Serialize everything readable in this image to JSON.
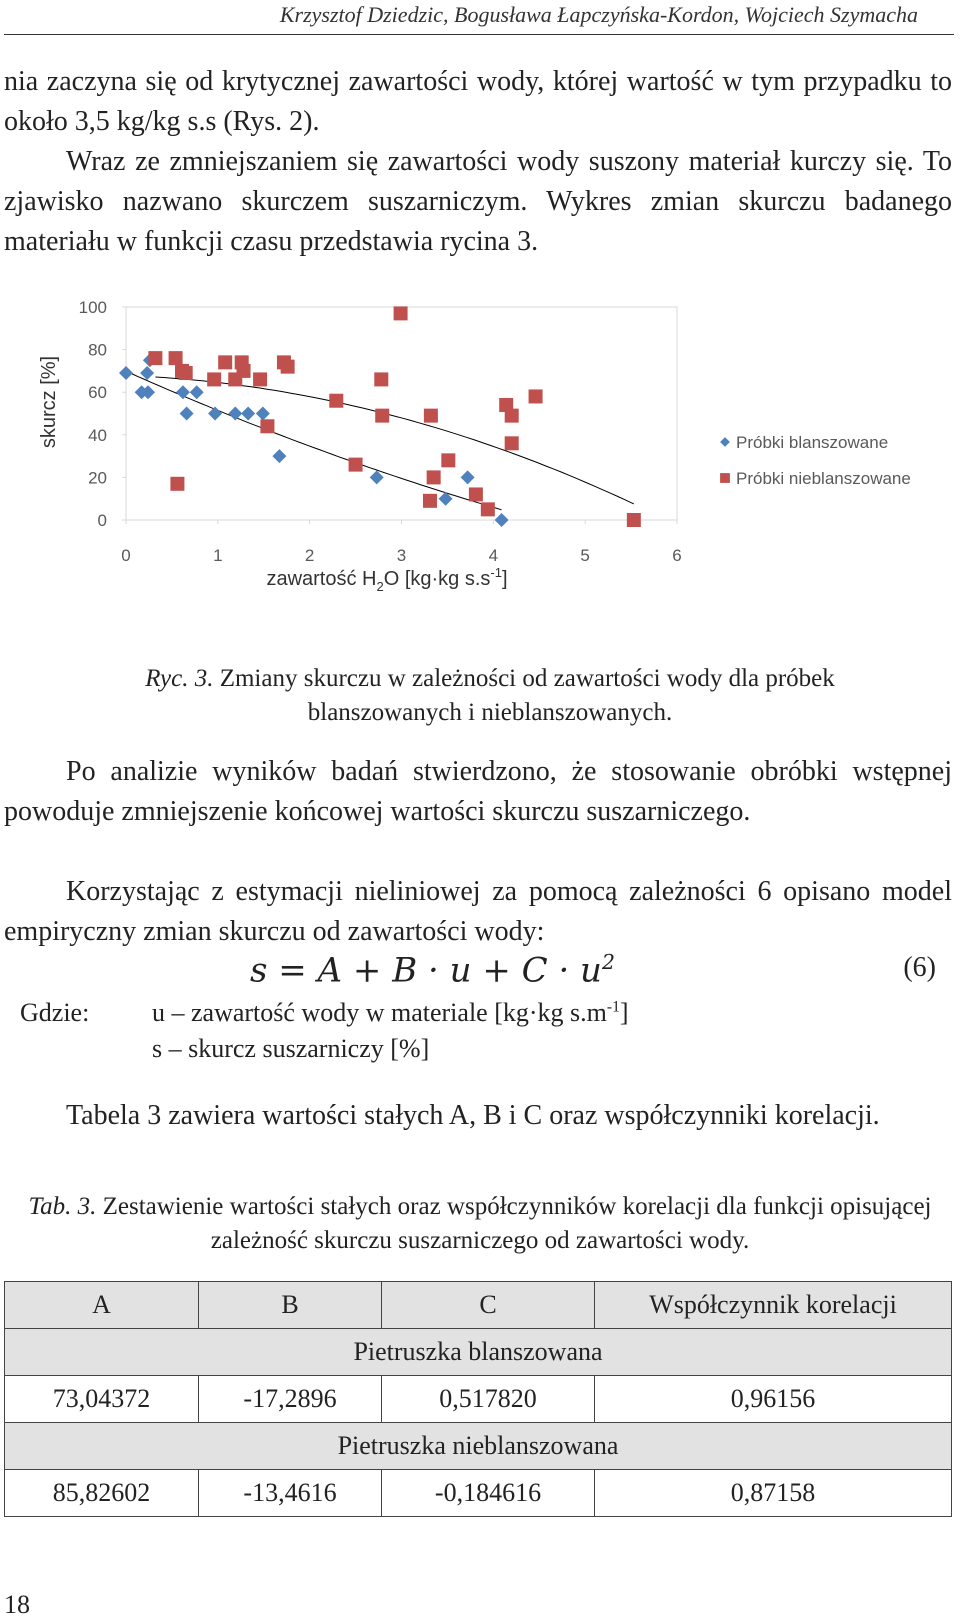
{
  "header": "Krzysztof Dziedzic, Bogusława Łapczyńska-Kordon, Wojciech Szymacha",
  "paragraphs": [
    "nia zaczyna się od krytycznej zawartości wody, której wartość w tym przypadku to około 3,5 kg/kg s.s (Rys. 2).",
    "Wraz ze zmniejszaniem się zawartości wody suszony materiał kurczy się. To zjawisko nazwano skurczem suszarniczym. Wykres zmian skurczu badanego materiału w funkcji czasu przedstawia rycina 3."
  ],
  "chart_data": {
    "type": "scatter",
    "y_label": "skurcz [%]",
    "x_label": [
      "zawartość H",
      "2",
      "O [kg·kg s.s",
      "-1",
      "]"
    ],
    "xlim": [
      0,
      6
    ],
    "xticks": [
      0,
      1,
      2,
      3,
      4,
      5,
      6
    ],
    "ylim": [
      0,
      100
    ],
    "yticks": [
      0,
      20,
      40,
      60,
      80,
      100
    ],
    "trendline": "poly2",
    "legend": "right",
    "series": [
      {
        "name": "Próbki blanszowane",
        "color": "#4f81bd",
        "marker": "diamond",
        "x": [
          0,
          0.17,
          0.24,
          0.23,
          0.26,
          0.62,
          0.77,
          0.66,
          0.97,
          1.19,
          1.33,
          1.49,
          1.67,
          2.73,
          3.48,
          3.72,
          4.09
        ],
        "values": [
          69,
          60,
          60,
          69,
          75,
          60,
          60,
          50,
          50,
          50,
          50,
          50,
          30,
          20,
          10,
          20,
          0
        ]
      },
      {
        "name": "Próbki nieblanszowane",
        "color": "#c0504d",
        "marker": "square",
        "x": [
          0.32,
          0.54,
          0.56,
          0.61,
          0.65,
          0.96,
          1.08,
          1.26,
          1.19,
          1.28,
          1.46,
          1.54,
          1.72,
          1.76,
          2.29,
          2.5,
          2.78,
          2.79,
          2.99,
          3.32,
          3.35,
          3.51,
          3.31,
          3.81,
          3.94,
          4.14,
          4.2,
          4.2,
          4.46,
          5.53
        ],
        "values": [
          76,
          76,
          17,
          70,
          69,
          66,
          74,
          74,
          66,
          70,
          66,
          44,
          74,
          72,
          56,
          26,
          66,
          49,
          97,
          49,
          20,
          28,
          9,
          12,
          5,
          54,
          49,
          36,
          58,
          0
        ]
      }
    ]
  },
  "figure_caption": {
    "label": "Ryc. 3.",
    "text": "Zmiany skurczu w zależności od zawartości wody dla próbek blanszowanych i nieblanszowanych."
  },
  "paragraphs2": [
    "Po analizie wyników badań stwierdzono, że stosowanie obróbki wstępnej powoduje zmniejszenie końcowej wartości skurczu suszarniczego.",
    "Korzystając z estymacji nieliniowej za pomocą zależności 6 opisano model empiryczny zmian skurczu od zawartości wody:"
  ],
  "equation": {
    "text": "s = A + B · u + C · u",
    "exponent": "2",
    "number": "(6)"
  },
  "where": {
    "label": "Gdzie:",
    "u": [
      "u – zawartość wody w materiale [kg·kg s.m",
      "-1",
      "]"
    ],
    "s": "s – skurcz suszarniczy [%]"
  },
  "paragraph3": "Tabela 3 zawiera wartości stałych A, B i C oraz współczynniki korelacji.",
  "table_caption": {
    "label": "Tab. 3.",
    "text": "Zestawienie wartości stałych oraz współczynników korelacji dla funkcji opisującej zależność skurczu suszarniczego od zawartości wody."
  },
  "table": {
    "header": [
      "A",
      "B",
      "C",
      "Współczynnik korelacji"
    ],
    "groups": [
      {
        "label": "Pietruszka blanszowana",
        "row": [
          "73,04372",
          "-17,2896",
          "0,517820",
          "0,96156"
        ]
      },
      {
        "label": "Pietruszka nieblanszowana",
        "row": [
          "85,82602",
          "-13,4616",
          "-0,184616",
          "0,87158"
        ]
      }
    ]
  },
  "page_number": "18"
}
